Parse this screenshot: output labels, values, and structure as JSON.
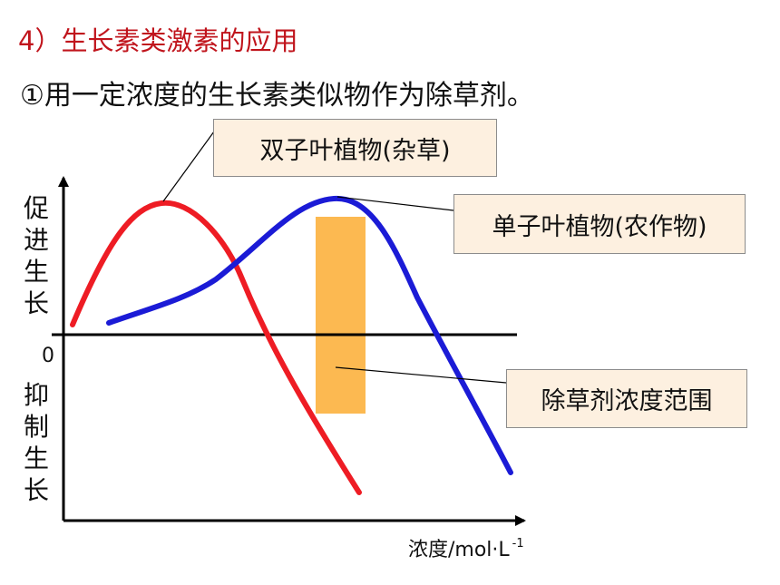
{
  "heading": "4）生长素类激素的应用",
  "subheading": "①用一定浓度的生长素类似物作为除草剂。",
  "labels": {
    "dicot": "双子叶植物(杂草)",
    "monocot": "单子叶植物(农作物)",
    "range": "除草剂浓度范围"
  },
  "axes": {
    "y_positive": "促进生长",
    "y_negative": "抑制生长",
    "origin": "0",
    "x_label": "浓度/mol·L",
    "x_label_exponent": "-1"
  },
  "colors": {
    "dicot_curve": "#ee1c24",
    "monocot_curve": "#1b1bd6",
    "range_bar": "#fcb951",
    "heading": "#c0141c"
  }
}
